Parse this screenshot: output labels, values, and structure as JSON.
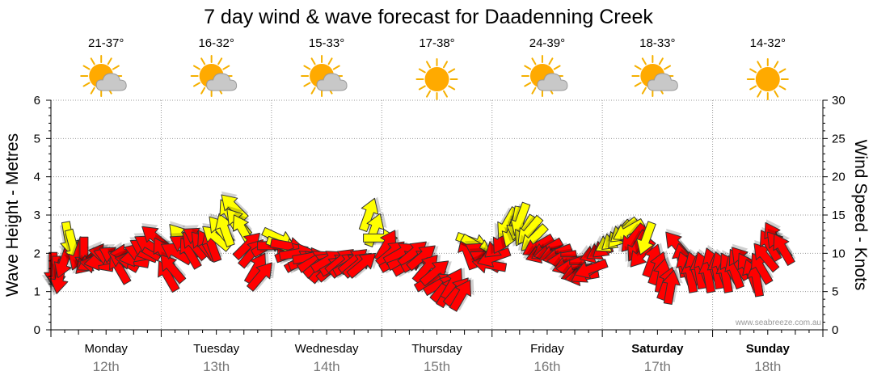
{
  "chart_data": {
    "type": "arrow-timeseries",
    "title": "7 day wind & wave forecast for Daadenning Creek",
    "ylabel_left": "Wave Height - Metres",
    "ylabel_right": "Wind Speed - Knots",
    "ylim_left": [
      0,
      6
    ],
    "ylim_right": [
      0,
      30
    ],
    "yticks_left": [
      "0",
      "1",
      "2",
      "3",
      "4",
      "5",
      "6"
    ],
    "yticks_right": [
      "0",
      "5",
      "10",
      "15",
      "20",
      "25",
      "30"
    ],
    "credit": "www.seabreeze.com.au",
    "days": [
      {
        "day": "Monday",
        "date": "12th",
        "temp": "21-37°",
        "weather": "partly-cloudy",
        "bold": false
      },
      {
        "day": "Tuesday",
        "date": "13th",
        "temp": "16-32°",
        "weather": "partly-cloudy",
        "bold": false
      },
      {
        "day": "Wednesday",
        "date": "14th",
        "temp": "15-33°",
        "weather": "partly-cloudy",
        "bold": false
      },
      {
        "day": "Thursday",
        "date": "15th",
        "temp": "17-38°",
        "weather": "sunny",
        "bold": false
      },
      {
        "day": "Friday",
        "date": "16th",
        "temp": "24-39°",
        "weather": "partly-cloudy",
        "bold": false
      },
      {
        "day": "Saturday",
        "date": "17th",
        "temp": "18-33°",
        "weather": "partly-cloudy",
        "bold": true
      },
      {
        "day": "Sunday",
        "date": "18th",
        "temp": "14-32°",
        "weather": "sunny",
        "bold": true
      }
    ],
    "wind_arrows": [
      {
        "t": 0.02,
        "knots": 8.0,
        "dir": 180,
        "color": "red"
      },
      {
        "t": 0.05,
        "knots": 7.5,
        "dir": 180,
        "color": "red"
      },
      {
        "t": 0.08,
        "knots": 7.0,
        "dir": 190,
        "color": "red"
      },
      {
        "t": 0.12,
        "knots": 9.0,
        "dir": 200,
        "color": "red"
      },
      {
        "t": 0.16,
        "knots": 12.0,
        "dir": 170,
        "color": "yellow"
      },
      {
        "t": 0.2,
        "knots": 11.0,
        "dir": 165,
        "color": "yellow"
      },
      {
        "t": 0.25,
        "knots": 10.0,
        "dir": 200,
        "color": "red"
      },
      {
        "t": 0.3,
        "knots": 10.0,
        "dir": 180,
        "color": "red"
      },
      {
        "t": 0.34,
        "knots": 9.0,
        "dir": 225,
        "color": "red"
      },
      {
        "t": 0.38,
        "knots": 9.0,
        "dir": 240,
        "color": "red"
      },
      {
        "t": 0.42,
        "knots": 8.5,
        "dir": 280,
        "color": "red"
      },
      {
        "t": 0.46,
        "knots": 9.0,
        "dir": 260,
        "color": "red"
      },
      {
        "t": 0.5,
        "knots": 10.0,
        "dir": 280,
        "color": "red"
      },
      {
        "t": 0.54,
        "knots": 9.5,
        "dir": 290,
        "color": "red"
      },
      {
        "t": 0.58,
        "knots": 9.5,
        "dir": 300,
        "color": "red"
      },
      {
        "t": 0.62,
        "knots": 8.0,
        "dir": 330,
        "color": "red"
      },
      {
        "t": 0.66,
        "knots": 9.0,
        "dir": 300,
        "color": "red"
      },
      {
        "t": 0.7,
        "knots": 10.0,
        "dir": 270,
        "color": "red"
      },
      {
        "t": 0.74,
        "knots": 9.0,
        "dir": 280,
        "color": "red"
      },
      {
        "t": 0.78,
        "knots": 9.5,
        "dir": 260,
        "color": "red"
      },
      {
        "t": 0.82,
        "knots": 10.0,
        "dir": 290,
        "color": "red"
      },
      {
        "t": 0.86,
        "knots": 10.5,
        "dir": 300,
        "color": "red"
      },
      {
        "t": 0.9,
        "knots": 11.0,
        "dir": 300,
        "color": "red"
      },
      {
        "t": 0.95,
        "knots": 12.0,
        "dir": 310,
        "color": "red"
      },
      {
        "t": 1.02,
        "knots": 10.0,
        "dir": 330,
        "color": "red"
      },
      {
        "t": 1.06,
        "knots": 7.0,
        "dir": 330,
        "color": "red"
      },
      {
        "t": 1.1,
        "knots": 8.0,
        "dir": 320,
        "color": "red"
      },
      {
        "t": 1.14,
        "knots": 10.0,
        "dir": 300,
        "color": "red"
      },
      {
        "t": 1.18,
        "knots": 12.0,
        "dir": 320,
        "color": "yellow"
      },
      {
        "t": 1.22,
        "knots": 11.0,
        "dir": 300,
        "color": "red"
      },
      {
        "t": 1.26,
        "knots": 10.0,
        "dir": 330,
        "color": "red"
      },
      {
        "t": 1.3,
        "knots": 11.0,
        "dir": 320,
        "color": "red"
      },
      {
        "t": 1.34,
        "knots": 12.0,
        "dir": 300,
        "color": "red"
      },
      {
        "t": 1.38,
        "knots": 11.0,
        "dir": 320,
        "color": "red"
      },
      {
        "t": 1.42,
        "knots": 11.0,
        "dir": 330,
        "color": "red"
      },
      {
        "t": 1.46,
        "knots": 11.0,
        "dir": 340,
        "color": "red"
      },
      {
        "t": 1.5,
        "knots": 12.0,
        "dir": 310,
        "color": "yellow"
      },
      {
        "t": 1.54,
        "knots": 13.0,
        "dir": 320,
        "color": "yellow"
      },
      {
        "t": 1.58,
        "knots": 13.0,
        "dir": 340,
        "color": "yellow"
      },
      {
        "t": 1.62,
        "knots": 15.0,
        "dir": 330,
        "color": "yellow"
      },
      {
        "t": 1.66,
        "knots": 16.0,
        "dir": 315,
        "color": "yellow"
      },
      {
        "t": 1.7,
        "knots": 14.0,
        "dir": 320,
        "color": "yellow"
      },
      {
        "t": 1.74,
        "knots": 13.0,
        "dir": 330,
        "color": "yellow"
      },
      {
        "t": 1.78,
        "knots": 11.0,
        "dir": 45,
        "color": "red"
      },
      {
        "t": 1.82,
        "knots": 10.0,
        "dir": 40,
        "color": "red"
      },
      {
        "t": 1.86,
        "knots": 8.0,
        "dir": 30,
        "color": "red"
      },
      {
        "t": 1.9,
        "knots": 7.0,
        "dir": 40,
        "color": "red"
      },
      {
        "t": 1.96,
        "knots": 11.0,
        "dir": 60,
        "color": "red"
      },
      {
        "t": 2.02,
        "knots": 11.0,
        "dir": 90,
        "color": "red"
      },
      {
        "t": 2.06,
        "knots": 12.0,
        "dir": 115,
        "color": "yellow"
      },
      {
        "t": 2.1,
        "knots": 11.0,
        "dir": 110,
        "color": "yellow"
      },
      {
        "t": 2.14,
        "knots": 11.0,
        "dir": 100,
        "color": "red"
      },
      {
        "t": 2.18,
        "knots": 10.0,
        "dir": 70,
        "color": "red"
      },
      {
        "t": 2.22,
        "knots": 10.0,
        "dir": 80,
        "color": "red"
      },
      {
        "t": 2.26,
        "knots": 9.0,
        "dir": 60,
        "color": "red"
      },
      {
        "t": 2.3,
        "knots": 9.0,
        "dir": 70,
        "color": "red"
      },
      {
        "t": 2.34,
        "knots": 9.5,
        "dir": 80,
        "color": "red"
      },
      {
        "t": 2.38,
        "knots": 9.0,
        "dir": 60,
        "color": "red"
      },
      {
        "t": 2.42,
        "knots": 8.5,
        "dir": 50,
        "color": "red"
      },
      {
        "t": 2.46,
        "knots": 8.0,
        "dir": 40,
        "color": "red"
      },
      {
        "t": 2.5,
        "knots": 9.0,
        "dir": 60,
        "color": "red"
      },
      {
        "t": 2.54,
        "knots": 8.0,
        "dir": 50,
        "color": "red"
      },
      {
        "t": 2.58,
        "knots": 8.5,
        "dir": 60,
        "color": "red"
      },
      {
        "t": 2.62,
        "knots": 9.0,
        "dir": 50,
        "color": "red"
      },
      {
        "t": 2.66,
        "knots": 8.5,
        "dir": 50,
        "color": "red"
      },
      {
        "t": 2.7,
        "knots": 8.5,
        "dir": 60,
        "color": "red"
      },
      {
        "t": 2.74,
        "knots": 9.0,
        "dir": 50,
        "color": "red"
      },
      {
        "t": 2.78,
        "knots": 8.5,
        "dir": 50,
        "color": "red"
      },
      {
        "t": 2.82,
        "knots": 8.5,
        "dir": 50,
        "color": "red"
      },
      {
        "t": 2.88,
        "knots": 15.0,
        "dir": 20,
        "color": "yellow"
      },
      {
        "t": 2.93,
        "knots": 13.0,
        "dir": 20,
        "color": "yellow"
      },
      {
        "t": 2.98,
        "knots": 12.0,
        "dir": 90,
        "color": "yellow"
      },
      {
        "t": 3.04,
        "knots": 11.0,
        "dir": 30,
        "color": "red"
      },
      {
        "t": 3.08,
        "knots": 10.0,
        "dir": 50,
        "color": "red"
      },
      {
        "t": 3.12,
        "knots": 9.0,
        "dir": 60,
        "color": "red"
      },
      {
        "t": 3.16,
        "knots": 10.0,
        "dir": 60,
        "color": "red"
      },
      {
        "t": 3.2,
        "knots": 9.0,
        "dir": 70,
        "color": "red"
      },
      {
        "t": 3.24,
        "knots": 8.5,
        "dir": 60,
        "color": "red"
      },
      {
        "t": 3.28,
        "knots": 10.0,
        "dir": 50,
        "color": "red"
      },
      {
        "t": 3.32,
        "knots": 9.0,
        "dir": 60,
        "color": "red"
      },
      {
        "t": 3.36,
        "knots": 9.5,
        "dir": 50,
        "color": "red"
      },
      {
        "t": 3.4,
        "knots": 8.0,
        "dir": 40,
        "color": "red"
      },
      {
        "t": 3.44,
        "knots": 6.5,
        "dir": 60,
        "color": "red"
      },
      {
        "t": 3.48,
        "knots": 7.5,
        "dir": 50,
        "color": "red"
      },
      {
        "t": 3.52,
        "knots": 6.0,
        "dir": 60,
        "color": "red"
      },
      {
        "t": 3.56,
        "knots": 5.5,
        "dir": 40,
        "color": "red"
      },
      {
        "t": 3.6,
        "knots": 5.0,
        "dir": 30,
        "color": "red"
      },
      {
        "t": 3.64,
        "knots": 6.0,
        "dir": 30,
        "color": "red"
      },
      {
        "t": 3.68,
        "knots": 5.0,
        "dir": 40,
        "color": "red"
      },
      {
        "t": 3.72,
        "knots": 4.5,
        "dir": 30,
        "color": "red"
      },
      {
        "t": 3.78,
        "knots": 10.0,
        "dir": 340,
        "color": "red"
      },
      {
        "t": 3.82,
        "knots": 11.5,
        "dir": 110,
        "color": "yellow"
      },
      {
        "t": 3.86,
        "knots": 11.0,
        "dir": 120,
        "color": "yellow"
      },
      {
        "t": 3.9,
        "knots": 10.0,
        "dir": 300,
        "color": "red"
      },
      {
        "t": 3.94,
        "knots": 9.0,
        "dir": 300,
        "color": "red"
      },
      {
        "t": 3.98,
        "knots": 8.5,
        "dir": 280,
        "color": "red"
      },
      {
        "t": 4.02,
        "knots": 9.5,
        "dir": 250,
        "color": "red"
      },
      {
        "t": 4.06,
        "knots": 11.0,
        "dir": 230,
        "color": "red"
      },
      {
        "t": 4.1,
        "knots": 12.0,
        "dir": 210,
        "color": "red"
      },
      {
        "t": 4.14,
        "knots": 14.0,
        "dir": 210,
        "color": "yellow"
      },
      {
        "t": 4.18,
        "knots": 13.0,
        "dir": 200,
        "color": "yellow"
      },
      {
        "t": 4.22,
        "knots": 14.0,
        "dir": 190,
        "color": "yellow"
      },
      {
        "t": 4.26,
        "knots": 14.5,
        "dir": 200,
        "color": "yellow"
      },
      {
        "t": 4.3,
        "knots": 13.0,
        "dir": 210,
        "color": "yellow"
      },
      {
        "t": 4.34,
        "knots": 13.0,
        "dir": 220,
        "color": "yellow"
      },
      {
        "t": 4.38,
        "knots": 12.0,
        "dir": 225,
        "color": "yellow"
      },
      {
        "t": 4.42,
        "knots": 11.0,
        "dir": 240,
        "color": "red"
      },
      {
        "t": 4.46,
        "knots": 10.0,
        "dir": 250,
        "color": "red"
      },
      {
        "t": 4.5,
        "knots": 10.5,
        "dir": 240,
        "color": "red"
      },
      {
        "t": 4.54,
        "knots": 10.0,
        "dir": 260,
        "color": "red"
      },
      {
        "t": 4.58,
        "knots": 10.0,
        "dir": 250,
        "color": "red"
      },
      {
        "t": 4.62,
        "knots": 9.5,
        "dir": 260,
        "color": "red"
      },
      {
        "t": 4.66,
        "knots": 9.0,
        "dir": 270,
        "color": "red"
      },
      {
        "t": 4.7,
        "knots": 8.5,
        "dir": 250,
        "color": "red"
      },
      {
        "t": 4.74,
        "knots": 8.0,
        "dir": 270,
        "color": "red"
      },
      {
        "t": 4.78,
        "knots": 7.5,
        "dir": 250,
        "color": "red"
      },
      {
        "t": 4.82,
        "knots": 7.0,
        "dir": 260,
        "color": "red"
      },
      {
        "t": 4.86,
        "knots": 7.5,
        "dir": 240,
        "color": "red"
      },
      {
        "t": 4.9,
        "knots": 8.0,
        "dir": 250,
        "color": "red"
      },
      {
        "t": 4.95,
        "knots": 10.0,
        "dir": 250,
        "color": "red"
      },
      {
        "t": 5.0,
        "knots": 10.5,
        "dir": 240,
        "color": "red"
      },
      {
        "t": 5.04,
        "knots": 11.0,
        "dir": 230,
        "color": "red"
      },
      {
        "t": 5.08,
        "knots": 11.5,
        "dir": 240,
        "color": "yellow"
      },
      {
        "t": 5.12,
        "knots": 12.0,
        "dir": 230,
        "color": "yellow"
      },
      {
        "t": 5.16,
        "knots": 12.5,
        "dir": 220,
        "color": "yellow"
      },
      {
        "t": 5.2,
        "knots": 13.0,
        "dir": 230,
        "color": "yellow"
      },
      {
        "t": 5.24,
        "knots": 13.0,
        "dir": 240,
        "color": "yellow"
      },
      {
        "t": 5.28,
        "knots": 12.0,
        "dir": 220,
        "color": "red"
      },
      {
        "t": 5.32,
        "knots": 11.0,
        "dir": 210,
        "color": "red"
      },
      {
        "t": 5.36,
        "knots": 10.0,
        "dir": 220,
        "color": "red"
      },
      {
        "t": 5.4,
        "knots": 12.0,
        "dir": 200,
        "color": "yellow"
      },
      {
        "t": 5.45,
        "knots": 9.0,
        "dir": 20,
        "color": "red"
      },
      {
        "t": 5.5,
        "knots": 8.0,
        "dir": 20,
        "color": "red"
      },
      {
        "t": 5.54,
        "knots": 7.0,
        "dir": 10,
        "color": "red"
      },
      {
        "t": 5.58,
        "knots": 6.0,
        "dir": 20,
        "color": "red"
      },
      {
        "t": 5.62,
        "knots": 5.5,
        "dir": 10,
        "color": "red"
      },
      {
        "t": 5.68,
        "knots": 11.0,
        "dir": 320,
        "color": "red"
      },
      {
        "t": 5.72,
        "knots": 9.0,
        "dir": 350,
        "color": "red"
      },
      {
        "t": 5.76,
        "knots": 8.0,
        "dir": 340,
        "color": "red"
      },
      {
        "t": 5.8,
        "knots": 7.0,
        "dir": 350,
        "color": "red"
      },
      {
        "t": 5.84,
        "knots": 8.0,
        "dir": 340,
        "color": "red"
      },
      {
        "t": 5.88,
        "knots": 7.5,
        "dir": 350,
        "color": "red"
      },
      {
        "t": 5.92,
        "knots": 8.0,
        "dir": 340,
        "color": "red"
      },
      {
        "t": 5.96,
        "knots": 7.0,
        "dir": 350,
        "color": "red"
      },
      {
        "t": 6.0,
        "knots": 8.5,
        "dir": 340,
        "color": "red"
      },
      {
        "t": 6.04,
        "knots": 7.5,
        "dir": 350,
        "color": "red"
      },
      {
        "t": 6.08,
        "knots": 8.0,
        "dir": 340,
        "color": "red"
      },
      {
        "t": 6.12,
        "knots": 7.0,
        "dir": 350,
        "color": "red"
      },
      {
        "t": 6.16,
        "knots": 8.0,
        "dir": 330,
        "color": "red"
      },
      {
        "t": 6.2,
        "knots": 7.5,
        "dir": 340,
        "color": "red"
      },
      {
        "t": 6.24,
        "knots": 8.5,
        "dir": 330,
        "color": "red"
      },
      {
        "t": 6.28,
        "knots": 9.0,
        "dir": 320,
        "color": "red"
      },
      {
        "t": 6.32,
        "knots": 8.0,
        "dir": 330,
        "color": "red"
      },
      {
        "t": 6.36,
        "knots": 7.0,
        "dir": 340,
        "color": "red"
      },
      {
        "t": 6.4,
        "knots": 6.5,
        "dir": 350,
        "color": "red"
      },
      {
        "t": 6.44,
        "knots": 8.0,
        "dir": 330,
        "color": "red"
      },
      {
        "t": 6.48,
        "knots": 9.5,
        "dir": 320,
        "color": "red"
      },
      {
        "t": 6.52,
        "knots": 11.0,
        "dir": 330,
        "color": "red"
      },
      {
        "t": 6.56,
        "knots": 12.0,
        "dir": 330,
        "color": "red"
      },
      {
        "t": 6.6,
        "knots": 11.0,
        "dir": 320,
        "color": "red"
      },
      {
        "t": 6.64,
        "knots": 10.5,
        "dir": 330,
        "color": "red"
      }
    ]
  },
  "colors": {
    "strong": "#ff0000",
    "moderate": "#ffff00",
    "outline": "#333333",
    "grid": "#999999",
    "axis": "#000000",
    "date_text": "#777777",
    "sun": "#ffaa00",
    "cloud": "#c8c8c8"
  }
}
